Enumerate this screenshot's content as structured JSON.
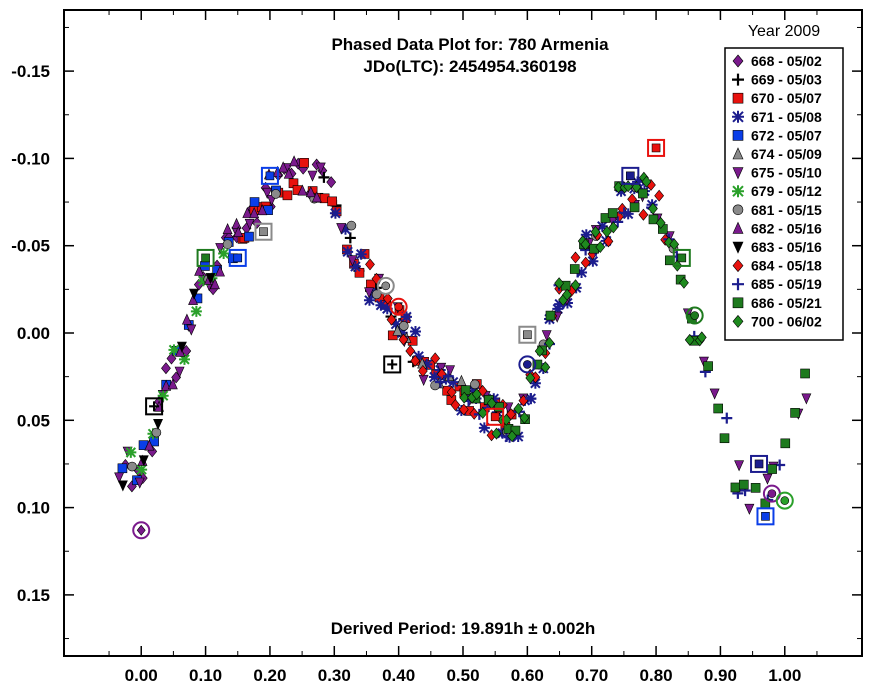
{
  "chart_data": {
    "type": "scatter",
    "title_line1": "Phased Data Plot for: 780 Armenia",
    "title_line2": "JDo(LTC): 2454954.360198",
    "footer": "Derived Period: 19.891h ± 0.002h",
    "xlabel": "",
    "ylabel": "",
    "xlim": [
      -0.12,
      1.12
    ],
    "ylim": [
      -0.185,
      0.185
    ],
    "y_inverted": true,
    "x_ticks": [
      "0.00",
      "0.10",
      "0.20",
      "0.30",
      "0.40",
      "0.50",
      "0.60",
      "0.70",
      "0.80",
      "0.90",
      "1.00"
    ],
    "x_tick_values": [
      0.0,
      0.1,
      0.2,
      0.3,
      0.4,
      0.5,
      0.6,
      0.7,
      0.8,
      0.9,
      1.0
    ],
    "y_ticks": [
      "-0.15",
      "-0.10",
      "-0.05",
      "0.00",
      "0.05",
      "0.10",
      "0.15"
    ],
    "y_tick_values": [
      -0.15,
      -0.1,
      -0.05,
      0.0,
      0.05,
      0.1,
      0.15
    ],
    "legend": {
      "title": "Year 2009",
      "placement": "top-right",
      "entries": [
        {
          "label": "668 - 05/02",
          "marker": "diamond",
          "color": "#7a1a8c"
        },
        {
          "label": "669 - 05/03",
          "marker": "plus",
          "color": "#000000"
        },
        {
          "label": "670 - 05/07",
          "marker": "square",
          "color": "#e8120e"
        },
        {
          "label": "671 - 05/08",
          "marker": "asterisk",
          "color": "#1c1d8e"
        },
        {
          "label": "672 - 05/07",
          "marker": "square",
          "color": "#0a3ee8"
        },
        {
          "label": "674 - 05/09",
          "marker": "triangle-up",
          "color": "#8a8a8a"
        },
        {
          "label": "675 - 05/10",
          "marker": "triangle-down",
          "color": "#7a1a8c"
        },
        {
          "label": "679 - 05/12",
          "marker": "asterisk",
          "color": "#2aa02a"
        },
        {
          "label": "681 - 05/15",
          "marker": "circle",
          "color": "#8a8a8a"
        },
        {
          "label": "682 - 05/16",
          "marker": "triangle-up",
          "color": "#7a1a8c"
        },
        {
          "label": "683 - 05/16",
          "marker": "triangle-down",
          "color": "#000000"
        },
        {
          "label": "684 - 05/18",
          "marker": "diamond",
          "color": "#e8120e"
        },
        {
          "label": "685 - 05/19",
          "marker": "plus",
          "color": "#1c1d8e"
        },
        {
          "label": "686 - 05/21",
          "marker": "square",
          "color": "#1e7a1e"
        },
        {
          "label": "700 - 06/02",
          "marker": "diamond",
          "color": "#1e8a1e"
        }
      ]
    },
    "curve_knots": [
      [
        -0.05,
        0.085
      ],
      [
        0.0,
        0.075
      ],
      [
        0.05,
        0.02
      ],
      [
        0.1,
        -0.03
      ],
      [
        0.15,
        -0.055
      ],
      [
        0.2,
        -0.08
      ],
      [
        0.25,
        -0.092
      ],
      [
        0.28,
        -0.085
      ],
      [
        0.32,
        -0.055
      ],
      [
        0.36,
        -0.028
      ],
      [
        0.4,
        -0.005
      ],
      [
        0.45,
        0.022
      ],
      [
        0.5,
        0.035
      ],
      [
        0.55,
        0.048
      ],
      [
        0.58,
        0.05
      ],
      [
        0.62,
        0.02
      ],
      [
        0.65,
        -0.02
      ],
      [
        0.7,
        -0.05
      ],
      [
        0.75,
        -0.075
      ],
      [
        0.78,
        -0.078
      ],
      [
        0.8,
        -0.072
      ],
      [
        0.83,
        -0.045
      ],
      [
        0.86,
        0.005
      ],
      [
        0.9,
        0.05
      ],
      [
        0.93,
        0.085
      ],
      [
        0.96,
        0.097
      ],
      [
        0.99,
        0.08
      ],
      [
        1.02,
        0.04
      ],
      [
        1.05,
        0.01
      ]
    ],
    "series_ranges": [
      {
        "name": "668 - 05/02",
        "x": [
          -0.03,
          0.3
        ],
        "n": 32
      },
      {
        "name": "669 - 05/03",
        "x": [
          0.28,
          0.45
        ],
        "n": 10
      },
      {
        "name": "670 - 05/07",
        "x": [
          0.15,
          0.58
        ],
        "n": 42
      },
      {
        "name": "671 - 05/08",
        "x": [
          0.3,
          0.8
        ],
        "n": 50
      },
      {
        "name": "672 - 05/07",
        "x": [
          -0.03,
          0.22
        ],
        "n": 16
      },
      {
        "name": "674 - 05/09",
        "x": [
          0.38,
          0.52
        ],
        "n": 6
      },
      {
        "name": "675 - 05/10",
        "x": [
          -0.05,
          1.05
        ],
        "n": 48
      },
      {
        "name": "679 - 05/12",
        "x": [
          -0.02,
          0.14
        ],
        "n": 10
      },
      {
        "name": "681 - 05/15",
        "x": [
          -0.05,
          0.84
        ],
        "n": 16
      },
      {
        "name": "682 - 05/16",
        "x": [
          0.0,
          0.28
        ],
        "n": 26
      },
      {
        "name": "683 - 05/16",
        "x": [
          -0.03,
          0.12
        ],
        "n": 6
      },
      {
        "name": "684 - 05/18",
        "x": [
          0.35,
          0.82
        ],
        "n": 38
      },
      {
        "name": "685 - 05/19",
        "x": [
          0.45,
          1.0
        ],
        "n": 26
      },
      {
        "name": "686 - 05/21",
        "x": [
          0.5,
          1.04
        ],
        "n": 36
      },
      {
        "name": "700 - 06/02",
        "x": [
          0.5,
          0.88
        ],
        "n": 40
      }
    ],
    "highlighted_points": [
      {
        "x": 0.0,
        "y": 0.113,
        "marker": "diamond",
        "color": "#7a1a8c"
      },
      {
        "x": 0.02,
        "y": 0.042,
        "marker": "square",
        "color": "#000000"
      },
      {
        "x": 0.1,
        "y": -0.043,
        "marker": "square",
        "color": "#1e7a1e"
      },
      {
        "x": 0.15,
        "y": -0.043,
        "marker": "square",
        "color": "#0a3ee8"
      },
      {
        "x": 0.19,
        "y": -0.058,
        "marker": "square",
        "color": "#8a8a8a"
      },
      {
        "x": 0.2,
        "y": -0.09,
        "marker": "square",
        "color": "#0a3ee8"
      },
      {
        "x": 0.38,
        "y": -0.027,
        "marker": "circle",
        "color": "#8a8a8a"
      },
      {
        "x": 0.39,
        "y": 0.018,
        "marker": "square",
        "color": "#000000"
      },
      {
        "x": 0.4,
        "y": -0.015,
        "marker": "circle",
        "color": "#e8120e"
      },
      {
        "x": 0.55,
        "y": 0.048,
        "marker": "square",
        "color": "#e8120e"
      },
      {
        "x": 0.6,
        "y": 0.001,
        "marker": "square",
        "color": "#8a8a8a"
      },
      {
        "x": 0.6,
        "y": 0.018,
        "marker": "circle",
        "color": "#1c1d8e"
      },
      {
        "x": 0.76,
        "y": -0.09,
        "marker": "square",
        "color": "#1c1d8e"
      },
      {
        "x": 0.8,
        "y": -0.106,
        "marker": "square",
        "color": "#e8120e"
      },
      {
        "x": 0.84,
        "y": -0.043,
        "marker": "square",
        "color": "#1e7a1e"
      },
      {
        "x": 0.86,
        "y": -0.01,
        "marker": "circle",
        "color": "#1e7a1e"
      },
      {
        "x": 0.96,
        "y": 0.075,
        "marker": "square",
        "color": "#1c1d8e"
      },
      {
        "x": 0.97,
        "y": 0.105,
        "marker": "square",
        "color": "#0a3ee8"
      },
      {
        "x": 0.98,
        "y": 0.092,
        "marker": "circle",
        "color": "#7a1a8c"
      },
      {
        "x": 1.0,
        "y": 0.096,
        "marker": "circle",
        "color": "#2aa02a"
      }
    ]
  }
}
